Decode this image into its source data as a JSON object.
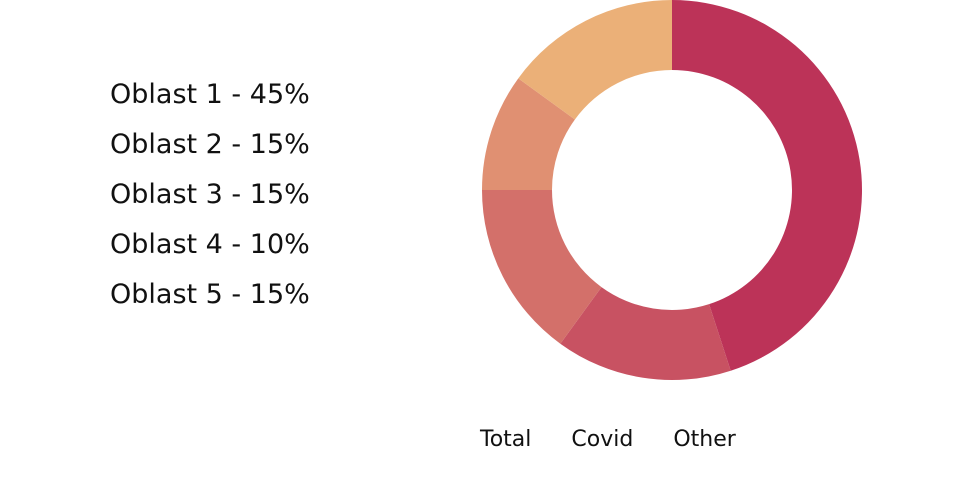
{
  "chart_data": {
    "type": "pie",
    "categories": [
      "Oblast 1",
      "Oblast 2",
      "Oblast 3",
      "Oblast 4",
      "Oblast 5"
    ],
    "values": [
      45,
      15,
      15,
      10,
      15
    ],
    "legend_labels": [
      "Oblast 1 - 45%",
      "Oblast 2 - 15%",
      "Oblast 3 - 15%",
      "Oblast 4 - 10%",
      "Oblast 5 - 15%"
    ],
    "colors": [
      "#bc3358",
      "#c85262",
      "#d3706a",
      "#e09072",
      "#ebb078"
    ],
    "donut": true,
    "legend_position": "left"
  },
  "tabs": [
    {
      "label": "Total"
    },
    {
      "label": "Covid"
    },
    {
      "label": "Other"
    }
  ]
}
